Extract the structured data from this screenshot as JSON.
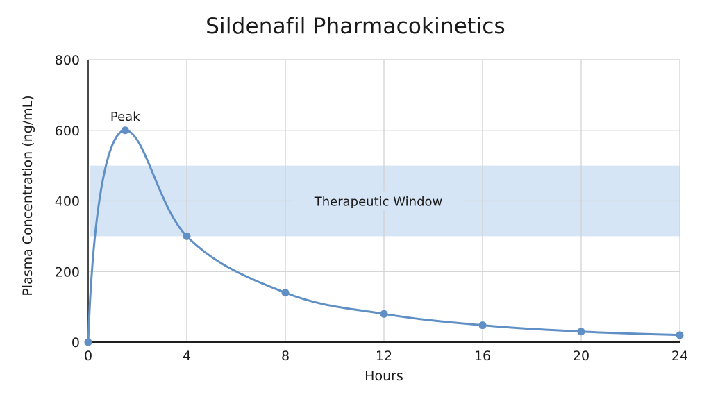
{
  "chart_data": {
    "type": "line",
    "title": "Sildenafil Pharmacokinetics",
    "xlabel": "Hours",
    "ylabel": "Plasma Concentration (ng/mL)",
    "xlim": [
      0,
      24
    ],
    "ylim": [
      0,
      800
    ],
    "x_ticks": [
      0,
      4,
      8,
      12,
      16,
      20,
      24
    ],
    "y_ticks": [
      0,
      200,
      400,
      600,
      800
    ],
    "grid": true,
    "legend": null,
    "series": [
      {
        "name": "Plasma Concentration",
        "color": "#5f8fc4",
        "x": [
          0,
          1.5,
          4,
          8,
          12,
          16,
          20,
          24
        ],
        "values": [
          0,
          600,
          300,
          140,
          80,
          48,
          30,
          20
        ]
      }
    ],
    "bands": [
      {
        "label": "Therapeutic Window",
        "y_from": 300,
        "y_to": 500,
        "color": "#d5e5f5"
      }
    ],
    "annotations": [
      {
        "text": "Peak",
        "x": 1.5,
        "y": 600
      },
      {
        "text": "Therapeutic Window",
        "x": 12,
        "y": 400
      }
    ]
  },
  "colors": {
    "line": "#5f8fc4",
    "band": "#d5e5f5",
    "grid": "#cfcfcf",
    "axis": "#4a4a4a",
    "text": "#1a1a1a"
  }
}
